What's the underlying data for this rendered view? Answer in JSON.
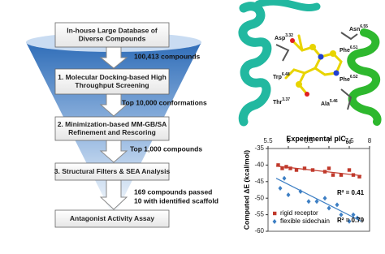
{
  "funnel": {
    "steps": [
      {
        "lines": [
          "In-house Large Database of",
          "Diverse Compounds"
        ]
      },
      {
        "lines": [
          "1. Molecular Docking-based High",
          "Throughput Screening"
        ]
      },
      {
        "lines": [
          "2. Minimization-based MM-GB/SA",
          "Refinement and Rescoring"
        ]
      },
      {
        "lines": [
          "3. Structural Filters & SEA Analysis"
        ]
      },
      {
        "lines": [
          "Antagonist Activity Assay"
        ]
      }
    ],
    "counts": [
      {
        "lines": [
          "100,413 compounds"
        ]
      },
      {
        "lines": [
          "Top 10,000 conformations"
        ]
      },
      {
        "lines": [
          "Top 1,000 compounds"
        ]
      },
      {
        "lines": [
          "169 compounds passed",
          "10 with identified scaffold"
        ]
      }
    ]
  },
  "structure": {
    "residues": [
      {
        "name": "Asp",
        "sup": "3.32"
      },
      {
        "name": "Asn",
        "sup": "6.55"
      },
      {
        "name": "Phe",
        "sup": "6.51"
      },
      {
        "name": "Trp",
        "sup": "6.48"
      },
      {
        "name": "Phe",
        "sup": "6.52"
      },
      {
        "name": "Ala",
        "sup": "5.46"
      },
      {
        "name": "Thr",
        "sup": "3.37"
      }
    ]
  },
  "chart_data": {
    "type": "scatter",
    "x_label": {
      "text": "Experimental pIC",
      "sub": "50"
    },
    "y_label": "Computed ΔE (kcal/mol)",
    "xlim": [
      5.5,
      8
    ],
    "xticks": [
      5.5,
      6,
      6.5,
      7,
      7.5,
      8
    ],
    "ylim": [
      -60,
      -35
    ],
    "yticks": [
      -35,
      -40,
      -45,
      -50,
      -55,
      -60
    ],
    "series": [
      {
        "name": "rigid receptor",
        "color": "#c0392b",
        "marker": "square",
        "x": [
          5.75,
          5.85,
          5.95,
          6.05,
          6.2,
          6.4,
          6.6,
          6.9,
          7.0,
          7.1,
          7.3,
          7.5,
          7.6,
          7.75
        ],
        "values": [
          -40,
          -41,
          -40.5,
          -41,
          -41.5,
          -41,
          -41.5,
          -42,
          -41,
          -43,
          -43,
          -41.5,
          -43,
          -43.5
        ],
        "trend": {
          "x": [
            5.7,
            7.8
          ],
          "y": [
            -40.3,
            -43.2
          ]
        },
        "annotation": "R² = 0.41"
      },
      {
        "name": "flexible sidechain",
        "color": "#3d7fc4",
        "marker": "diamond",
        "x": [
          5.8,
          5.9,
          6.0,
          6.3,
          6.5,
          6.7,
          6.9,
          7.0,
          7.2,
          7.3,
          7.5,
          7.6,
          7.7
        ],
        "values": [
          -47,
          -44,
          -49,
          -48,
          -51,
          -51,
          -50,
          -53,
          -52,
          -55,
          -57,
          -55,
          -56
        ],
        "trend": {
          "x": [
            5.7,
            7.8
          ],
          "y": [
            -44,
            -57
          ]
        },
        "annotation": "R² = 0.79"
      }
    ]
  }
}
